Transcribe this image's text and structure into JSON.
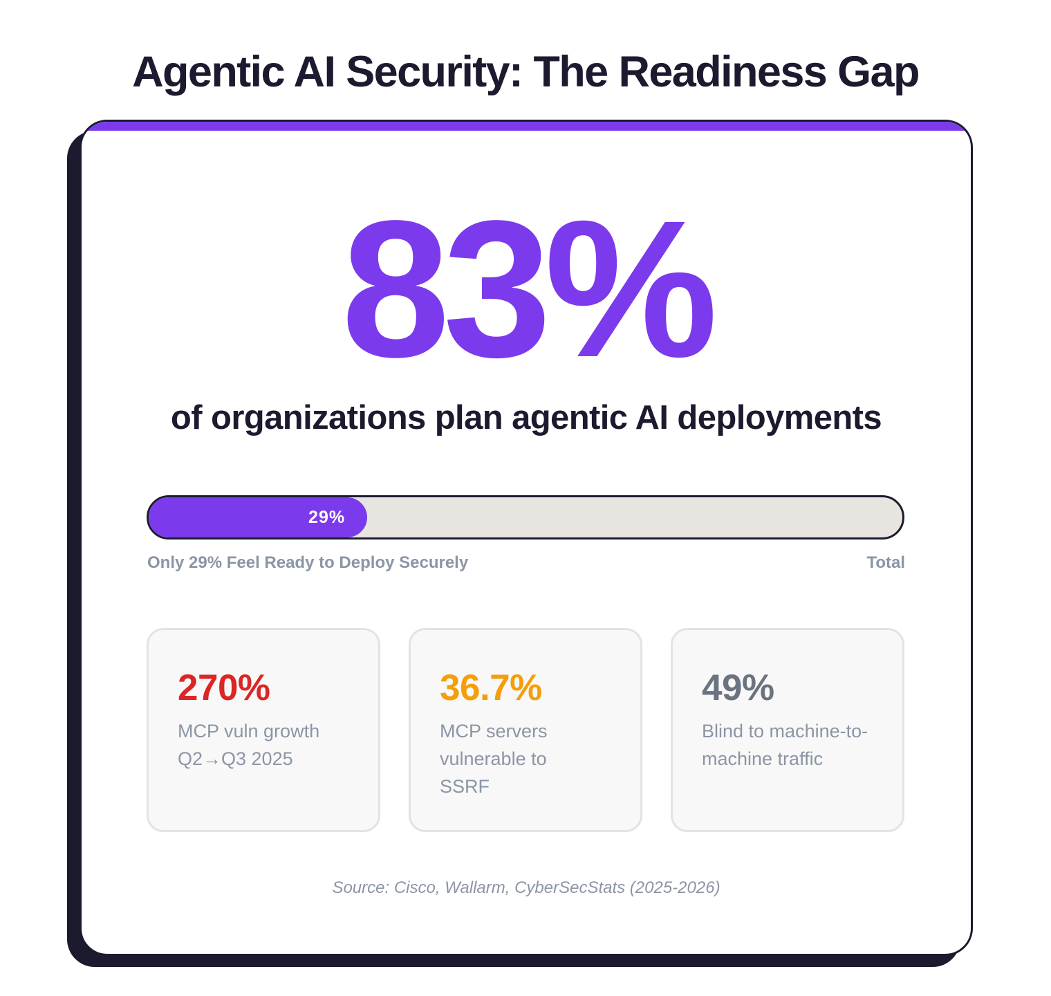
{
  "title": "Agentic AI Security: The Readiness Gap",
  "hero": {
    "value": "83%",
    "caption": "of organizations plan agentic AI deployments",
    "color": "#7c3aed"
  },
  "progress": {
    "percent": 29,
    "fill_label": "29%",
    "left_label": "Only 29% Feel Ready to Deploy Securely",
    "right_label": "Total",
    "fill_color": "#7c3aed",
    "track_color": "#e8e5e1"
  },
  "stats": [
    {
      "value": "270%",
      "description": "MCP vuln growth Q2→Q3 2025",
      "color": "#dc2626"
    },
    {
      "value": "36.7%",
      "description": "MCP servers vulnerable to SSRF",
      "color": "#f59e0b"
    },
    {
      "value": "49%",
      "description": "Blind to machine-to-machine traffic",
      "color": "#6b7280"
    }
  ],
  "source": "Source: Cisco, Wallarm, CyberSecStats (2025-2026)",
  "chart_data": {
    "type": "bar",
    "title": "Agentic AI Security: The Readiness Gap",
    "categories": [
      "Plan agentic AI deployments",
      "Feel ready to deploy securely"
    ],
    "values": [
      83,
      29
    ],
    "unit": "%",
    "ylim": [
      0,
      100
    ],
    "annotations": [
      {
        "value": "270%",
        "label": "MCP vuln growth Q2→Q3 2025"
      },
      {
        "value": "36.7%",
        "label": "MCP servers vulnerable to SSRF"
      },
      {
        "value": "49%",
        "label": "Blind to machine-to-machine traffic"
      }
    ]
  }
}
